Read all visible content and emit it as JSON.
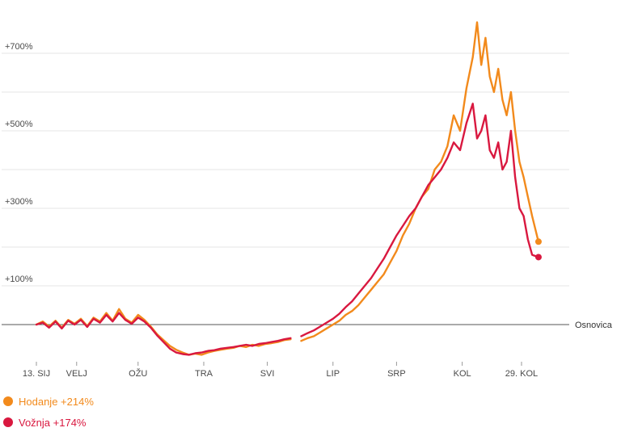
{
  "chart_data": {
    "type": "line",
    "title": "",
    "xlabel": "",
    "ylabel": "",
    "ylim": [
      -110,
      800
    ],
    "y_ticks": [
      {
        "value": 100,
        "label": "+100%"
      },
      {
        "value": 300,
        "label": "+300%"
      },
      {
        "value": 500,
        "label": "+500%"
      },
      {
        "value": 700,
        "label": "+700%"
      }
    ],
    "x_ticks": [
      {
        "day": 12,
        "label": "13. SIJ"
      },
      {
        "day": 31,
        "label": "VELJ"
      },
      {
        "day": 60,
        "label": "OŽU"
      },
      {
        "day": 91,
        "label": "TRA"
      },
      {
        "day": 121,
        "label": "SVI"
      },
      {
        "day": 152,
        "label": "LIP"
      },
      {
        "day": 182,
        "label": "SRP"
      },
      {
        "day": 213,
        "label": "KOL"
      },
      {
        "day": 241,
        "label": "29. KOL"
      }
    ],
    "baseline": {
      "value": 0,
      "label": "Osnovica"
    },
    "gap": [
      132,
      137
    ],
    "series": [
      {
        "name": "Hodanje",
        "color": "#f28a1c",
        "end_label": "Hodanje +214%",
        "points": [
          [
            12,
            0
          ],
          [
            15,
            8
          ],
          [
            18,
            -5
          ],
          [
            21,
            10
          ],
          [
            24,
            -8
          ],
          [
            27,
            12
          ],
          [
            30,
            2
          ],
          [
            33,
            15
          ],
          [
            36,
            -4
          ],
          [
            39,
            18
          ],
          [
            42,
            8
          ],
          [
            45,
            30
          ],
          [
            48,
            10
          ],
          [
            51,
            40
          ],
          [
            54,
            15
          ],
          [
            57,
            5
          ],
          [
            60,
            25
          ],
          [
            63,
            12
          ],
          [
            66,
            -5
          ],
          [
            69,
            -25
          ],
          [
            72,
            -40
          ],
          [
            75,
            -55
          ],
          [
            78,
            -65
          ],
          [
            81,
            -72
          ],
          [
            84,
            -78
          ],
          [
            87,
            -75
          ],
          [
            90,
            -78
          ],
          [
            93,
            -72
          ],
          [
            96,
            -68
          ],
          [
            99,
            -65
          ],
          [
            102,
            -62
          ],
          [
            105,
            -60
          ],
          [
            108,
            -55
          ],
          [
            111,
            -58
          ],
          [
            114,
            -52
          ],
          [
            117,
            -55
          ],
          [
            120,
            -50
          ],
          [
            123,
            -48
          ],
          [
            126,
            -45
          ],
          [
            129,
            -40
          ],
          [
            132,
            -38
          ],
          [
            137,
            -42
          ],
          [
            140,
            -35
          ],
          [
            143,
            -30
          ],
          [
            146,
            -20
          ],
          [
            149,
            -10
          ],
          [
            152,
            0
          ],
          [
            155,
            10
          ],
          [
            158,
            25
          ],
          [
            161,
            35
          ],
          [
            164,
            50
          ],
          [
            167,
            70
          ],
          [
            170,
            90
          ],
          [
            173,
            110
          ],
          [
            176,
            130
          ],
          [
            179,
            160
          ],
          [
            182,
            190
          ],
          [
            185,
            230
          ],
          [
            188,
            260
          ],
          [
            191,
            300
          ],
          [
            194,
            330
          ],
          [
            197,
            350
          ],
          [
            200,
            400
          ],
          [
            203,
            420
          ],
          [
            206,
            460
          ],
          [
            209,
            540
          ],
          [
            212,
            500
          ],
          [
            215,
            610
          ],
          [
            218,
            690
          ],
          [
            220,
            780
          ],
          [
            222,
            670
          ],
          [
            224,
            740
          ],
          [
            226,
            640
          ],
          [
            228,
            600
          ],
          [
            230,
            660
          ],
          [
            232,
            580
          ],
          [
            234,
            540
          ],
          [
            236,
            600
          ],
          [
            238,
            500
          ],
          [
            240,
            420
          ],
          [
            242,
            380
          ],
          [
            244,
            330
          ],
          [
            246,
            280
          ],
          [
            249,
            214
          ]
        ]
      },
      {
        "name": "Vožnja",
        "color": "#d9183f",
        "end_label": "Vožnja +174%",
        "points": [
          [
            12,
            0
          ],
          [
            15,
            5
          ],
          [
            18,
            -8
          ],
          [
            21,
            8
          ],
          [
            24,
            -10
          ],
          [
            27,
            10
          ],
          [
            30,
            0
          ],
          [
            33,
            12
          ],
          [
            36,
            -6
          ],
          [
            39,
            15
          ],
          [
            42,
            5
          ],
          [
            45,
            25
          ],
          [
            48,
            8
          ],
          [
            51,
            30
          ],
          [
            54,
            12
          ],
          [
            57,
            2
          ],
          [
            60,
            18
          ],
          [
            63,
            8
          ],
          [
            66,
            -8
          ],
          [
            69,
            -28
          ],
          [
            72,
            -45
          ],
          [
            75,
            -62
          ],
          [
            78,
            -72
          ],
          [
            81,
            -76
          ],
          [
            84,
            -78
          ],
          [
            87,
            -74
          ],
          [
            90,
            -72
          ],
          [
            93,
            -68
          ],
          [
            96,
            -66
          ],
          [
            99,
            -62
          ],
          [
            102,
            -60
          ],
          [
            105,
            -58
          ],
          [
            108,
            -55
          ],
          [
            111,
            -52
          ],
          [
            114,
            -55
          ],
          [
            117,
            -50
          ],
          [
            120,
            -48
          ],
          [
            123,
            -45
          ],
          [
            126,
            -42
          ],
          [
            129,
            -38
          ],
          [
            132,
            -35
          ],
          [
            137,
            -30
          ],
          [
            140,
            -22
          ],
          [
            143,
            -15
          ],
          [
            146,
            -5
          ],
          [
            149,
            5
          ],
          [
            152,
            15
          ],
          [
            155,
            28
          ],
          [
            158,
            45
          ],
          [
            161,
            60
          ],
          [
            164,
            80
          ],
          [
            167,
            100
          ],
          [
            170,
            120
          ],
          [
            173,
            145
          ],
          [
            176,
            170
          ],
          [
            179,
            200
          ],
          [
            182,
            230
          ],
          [
            185,
            255
          ],
          [
            188,
            280
          ],
          [
            191,
            300
          ],
          [
            194,
            330
          ],
          [
            197,
            360
          ],
          [
            200,
            380
          ],
          [
            203,
            400
          ],
          [
            206,
            430
          ],
          [
            209,
            470
          ],
          [
            212,
            450
          ],
          [
            215,
            520
          ],
          [
            218,
            570
          ],
          [
            220,
            480
          ],
          [
            222,
            500
          ],
          [
            224,
            540
          ],
          [
            226,
            450
          ],
          [
            228,
            430
          ],
          [
            230,
            470
          ],
          [
            232,
            400
          ],
          [
            234,
            420
          ],
          [
            236,
            500
          ],
          [
            238,
            380
          ],
          [
            240,
            300
          ],
          [
            242,
            280
          ],
          [
            244,
            220
          ],
          [
            246,
            180
          ],
          [
            249,
            174
          ]
        ]
      }
    ],
    "legend_position": "bottom-left",
    "grid": true
  }
}
